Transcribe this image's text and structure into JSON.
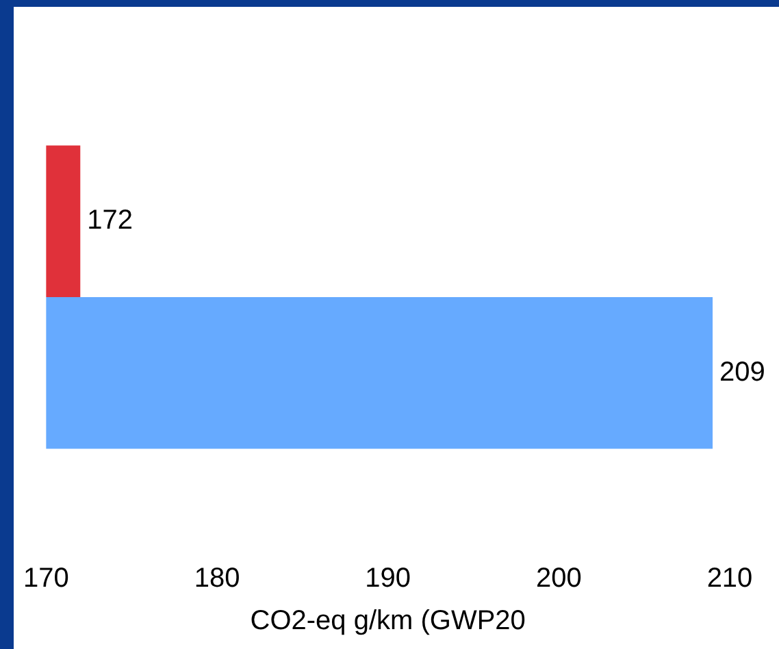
{
  "chart_data": {
    "type": "bar",
    "orientation": "horizontal",
    "categories": [
      null
    ],
    "series": [
      {
        "color": "#e0313a",
        "values": [
          172
        ]
      },
      {
        "color": "#66aaff",
        "values": [
          209
        ]
      }
    ],
    "xlabel": "CO2-eq g/km (GWP20",
    "xlim": [
      170,
      210
    ],
    "xticks": [
      170,
      180,
      190,
      200,
      210
    ],
    "data_labels": true,
    "grid": false,
    "legend": false
  }
}
